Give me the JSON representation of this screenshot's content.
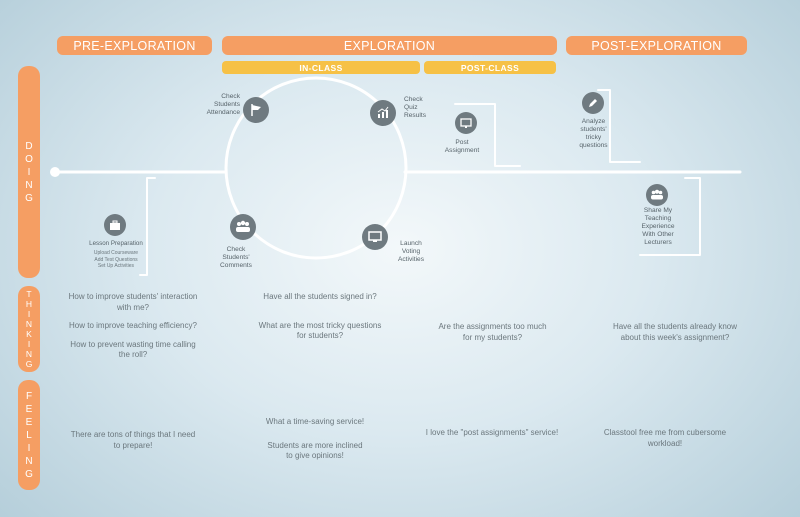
{
  "phases": {
    "pre": "PRE-EXPLORATION",
    "exploration": "EXPLORATION",
    "post": "POST-EXPLORATION",
    "in_class": "IN-CLASS",
    "post_class": "POST-CLASS"
  },
  "rows": {
    "doing": [
      "D",
      "O",
      "I",
      "N",
      "G"
    ],
    "thinking": [
      "T",
      "H",
      "I",
      "N",
      "K",
      "I",
      "N",
      "G"
    ],
    "feeling": [
      "F",
      "E",
      "E",
      "L",
      "I",
      "N",
      "G"
    ]
  },
  "steps": {
    "attendance": [
      "Check",
      "Students",
      "Attendance"
    ],
    "quiz": [
      "Check",
      "Quiz",
      "Results"
    ],
    "post_assignment": [
      "Post",
      "Assignment"
    ],
    "analyze": [
      "Analyze",
      "students'",
      "tricky",
      "questions"
    ],
    "lesson": "Lesson Preparation",
    "lesson_details": [
      "Upload Courseware",
      "Add Test Questions",
      "Set Up Activities"
    ],
    "comments": [
      "Check",
      "Students'",
      "Comments"
    ],
    "voting": [
      "Launch",
      "Voting",
      "Activities"
    ],
    "share": [
      "Share My",
      "Teaching",
      "Experience",
      "With Other",
      "Lecturers"
    ]
  },
  "thinking": {
    "pre": [
      "How to improve students' interaction",
      "with me?",
      "How to improve teaching efficiency?",
      "How to prevent wasting time calling",
      "the roll?"
    ],
    "in_class": [
      "Have all the students signed in?",
      "What are the most tricky questions",
      "for students?"
    ],
    "post_class": [
      "Are the assignments too much",
      "for my students?"
    ],
    "post": [
      "Have all the students already know",
      "about this week's assignment?"
    ]
  },
  "feeling": {
    "pre": [
      "There are tons of things that I need",
      "to prepare!"
    ],
    "in_class": [
      "What a time-saving service!",
      "Students are more inclined",
      "to give opinions!"
    ],
    "post_class": "I love the \"post assignments\" service!",
    "post": [
      "Classtool free me from cubersome",
      "workload!"
    ]
  }
}
